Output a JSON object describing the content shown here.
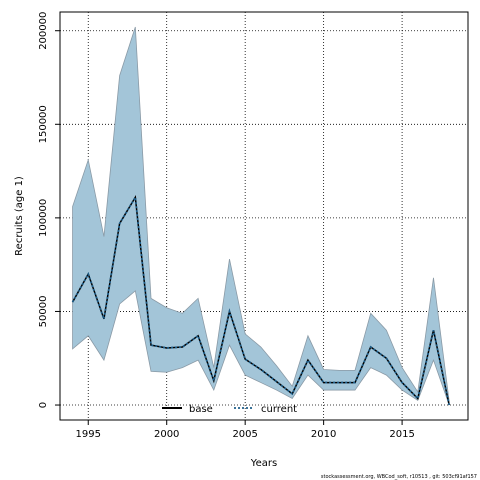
{
  "chart_data": {
    "type": "line",
    "xlabel": "Years",
    "ylabel": "Recruits (age 1)",
    "xlim": [
      1993.2,
      2019.2
    ],
    "ylim": [
      -8000,
      210000
    ],
    "x_ticks": [
      1995,
      2000,
      2005,
      2010,
      2015
    ],
    "y_ticks": [
      0,
      50000,
      100000,
      150000,
      200000
    ],
    "grid": true,
    "grid_style": "dotted",
    "legend_position": "bottom-center",
    "x": [
      1994,
      1995,
      1996,
      1997,
      1998,
      1999,
      2000,
      2001,
      2002,
      2003,
      2004,
      2005,
      2006,
      2007,
      2008,
      2009,
      2010,
      2011,
      2012,
      2013,
      2014,
      2015,
      2016,
      2017,
      2018
    ],
    "band": {
      "lower": [
        30000,
        37000,
        24000,
        54000,
        61000,
        18000,
        17500,
        20000,
        24000,
        8000,
        32000,
        16000,
        12000,
        8000,
        3500,
        16000,
        8000,
        8000,
        8000,
        20000,
        16000,
        8000,
        2500,
        24000,
        0
      ],
      "upper": [
        106000,
        131000,
        90000,
        176000,
        202000,
        57000,
        52000,
        49000,
        57000,
        20000,
        78000,
        38000,
        31000,
        21000,
        10000,
        37000,
        19000,
        18500,
        18500,
        49000,
        40000,
        20000,
        7000,
        68000,
        2000
      ]
    },
    "series": [
      {
        "name": "base",
        "color": "#000000",
        "style": "solid",
        "values": [
          55000,
          70000,
          46000,
          97000,
          111000,
          32000,
          30500,
          31000,
          37000,
          13000,
          50000,
          24500,
          19000,
          12500,
          6000,
          24000,
          12000,
          12000,
          12000,
          31000,
          25000,
          12000,
          3500,
          40000,
          0
        ]
      },
      {
        "name": "current",
        "color": "#1f5f8a",
        "style": "dotted",
        "values": [
          55000,
          70000,
          46000,
          97000,
          111000,
          32000,
          30500,
          31000,
          37000,
          13000,
          50000,
          24500,
          19000,
          12500,
          6000,
          24000,
          12000,
          12000,
          12000,
          31000,
          25000,
          12000,
          3500,
          40000,
          0
        ]
      }
    ]
  },
  "colors": {
    "band_fill": "#a3c5d8",
    "band_stroke": "#8a9aa6",
    "grid": "#000000"
  },
  "footer": "stockassessment.org, WBCod_soft, r10513 , git: 503cf91af157"
}
